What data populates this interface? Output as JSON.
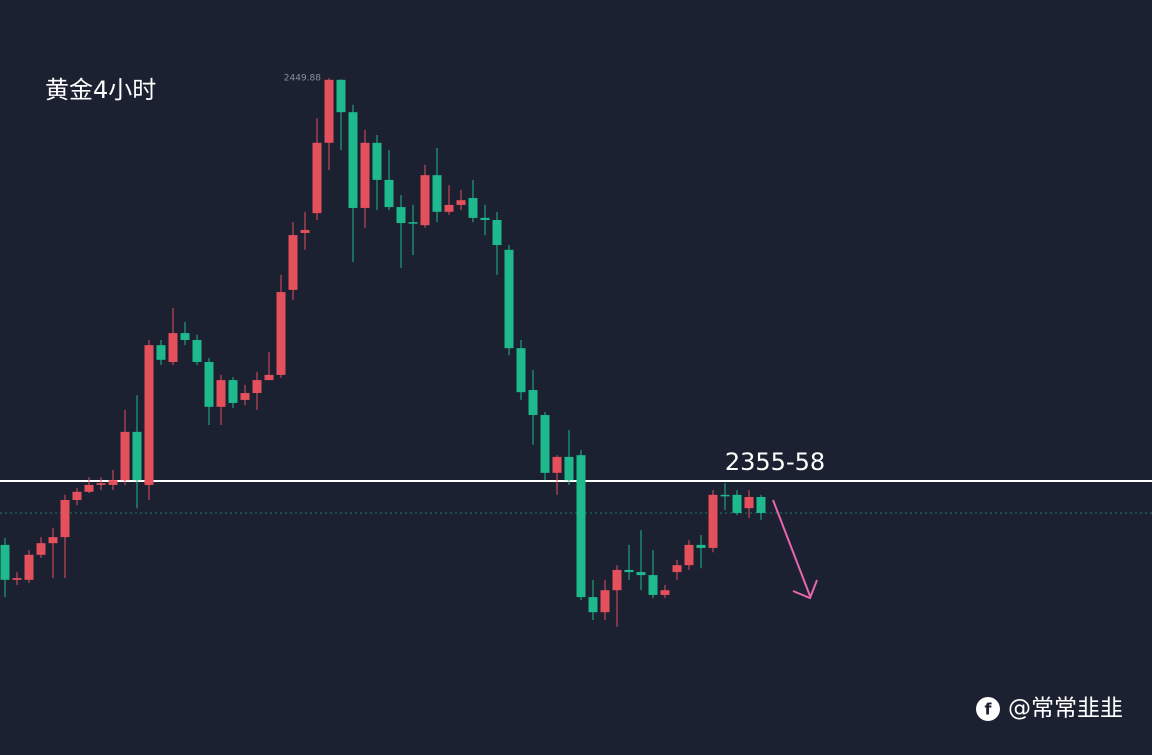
{
  "chart_data": {
    "type": "candlestick",
    "title": "黄金4小时",
    "open": [
      2341.7,
      2333.6,
      2333.6,
      2339.4,
      2342.1,
      2343.5,
      2352.1,
      2354.0,
      2355.6,
      2355.6,
      2356.7,
      2367.9,
      2355.6,
      2388.0,
      2384.1,
      2390.8,
      2389.2,
      2384.1,
      2373.7,
      2379.9,
      2375.3,
      2376.9,
      2379.9,
      2381.1,
      2400.8,
      2414.0,
      2418.6,
      2434.9,
      2449.5,
      2442.0,
      2419.8,
      2434.9,
      2426.3,
      2420.0,
      2416.5,
      2415.8,
      2427.4,
      2418.9,
      2420.5,
      2422.1,
      2417.5,
      2417.0,
      2410.1,
      2387.3,
      2377.6,
      2371.8,
      2358.4,
      2362.1,
      2362.5,
      2329.6,
      2326.1,
      2331.2,
      2335.9,
      2335.4,
      2334.7,
      2330.1,
      2335.4,
      2337.0,
      2341.7,
      2341.0,
      2353.3,
      2353.3,
      2350.2,
      2352.8
    ],
    "high": [
      2343.3,
      2335.4,
      2340.5,
      2343.5,
      2345.6,
      2353.3,
      2354.9,
      2357.4,
      2357.4,
      2359.1,
      2373.0,
      2376.4,
      2389.2,
      2389.2,
      2396.6,
      2393.4,
      2390.4,
      2385.0,
      2381.1,
      2380.6,
      2378.8,
      2381.8,
      2386.4,
      2404.3,
      2416.5,
      2418.9,
      2440.6,
      2449.88,
      2449.6,
      2443.7,
      2437.9,
      2436.7,
      2433.2,
      2422.8,
      2420.5,
      2429.8,
      2433.7,
      2425.1,
      2424.0,
      2426.3,
      2420.5,
      2418.9,
      2411.2,
      2389.2,
      2382.2,
      2372.5,
      2362.5,
      2368.3,
      2363.7,
      2333.6,
      2333.6,
      2337.0,
      2341.7,
      2345.1,
      2340.5,
      2332.4,
      2338.2,
      2342.8,
      2344.0,
      2354.4,
      2356.0,
      2354.4,
      2354.4,
      2353.3
    ],
    "low": [
      2329.6,
      2332.4,
      2332.9,
      2338.7,
      2334.0,
      2334.0,
      2350.9,
      2353.7,
      2354.4,
      2354.4,
      2355.6,
      2350.2,
      2352.1,
      2383.4,
      2383.4,
      2388.0,
      2383.4,
      2369.5,
      2369.5,
      2373.4,
      2374.1,
      2373.0,
      2379.9,
      2380.4,
      2398.5,
      2410.1,
      2417.0,
      2428.6,
      2433.2,
      2407.3,
      2415.2,
      2419.3,
      2419.3,
      2405.9,
      2408.9,
      2415.2,
      2416.5,
      2418.2,
      2419.3,
      2416.5,
      2413.5,
      2404.3,
      2385.7,
      2375.3,
      2364.9,
      2356.7,
      2353.3,
      2355.6,
      2328.9,
      2324.3,
      2324.3,
      2322.7,
      2333.6,
      2331.2,
      2329.4,
      2329.4,
      2333.6,
      2335.9,
      2336.3,
      2340.0,
      2349.8,
      2348.6,
      2347.9,
      2347.5
    ],
    "close": [
      2333.6,
      2334.0,
      2339.4,
      2342.1,
      2343.5,
      2352.1,
      2354.0,
      2355.6,
      2356.0,
      2356.7,
      2367.9,
      2356.7,
      2388.0,
      2384.6,
      2390.8,
      2389.2,
      2384.1,
      2373.7,
      2379.9,
      2374.6,
      2376.9,
      2379.9,
      2381.1,
      2400.3,
      2413.5,
      2414.7,
      2434.9,
      2449.5,
      2442.0,
      2419.8,
      2434.9,
      2426.3,
      2420.0,
      2416.3,
      2416.3,
      2427.4,
      2418.9,
      2420.5,
      2421.6,
      2417.5,
      2417.0,
      2411.2,
      2387.3,
      2377.1,
      2371.8,
      2358.4,
      2362.1,
      2356.7,
      2329.6,
      2326.1,
      2331.2,
      2335.9,
      2335.4,
      2334.7,
      2330.1,
      2331.2,
      2337.0,
      2341.7,
      2341.0,
      2353.3,
      2353.0,
      2349.1,
      2352.8,
      2349.1
    ],
    "up_color": "#e5505d",
    "down_color": "#1fb98e",
    "ylim": [
      2293,
      2468
    ],
    "level": {
      "value": 2356.5,
      "label": "2355-58"
    }
  },
  "watermark": "@常常韭韭"
}
